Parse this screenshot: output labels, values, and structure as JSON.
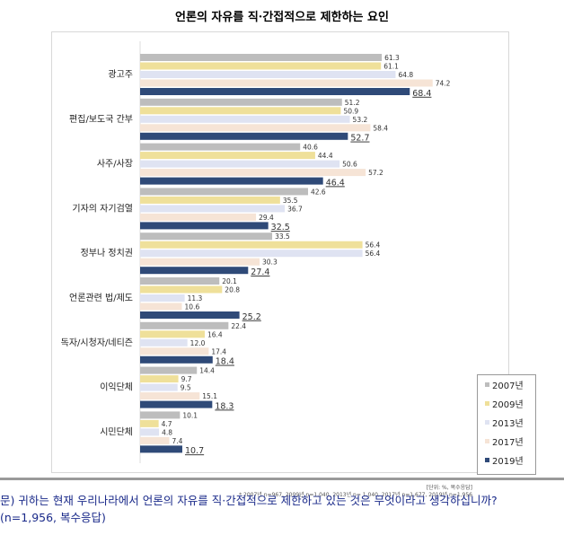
{
  "chart_data": {
    "type": "bar",
    "orientation": "horizontal",
    "title": "언론의 자유를 직·간접적으로 제한하는 요인",
    "categories": [
      "광고주",
      "편집/보도국 간부",
      "사주/사장",
      "기자의 자기검열",
      "정부나 정치권",
      "언론관련 법/제도",
      "독자/시청자/네티즌",
      "이익단체",
      "시민단체"
    ],
    "series": [
      {
        "name": "2007년",
        "color": "#bdbdbd",
        "values": [
          61.3,
          51.2,
          40.6,
          42.6,
          33.5,
          20.1,
          22.4,
          14.4,
          10.1
        ]
      },
      {
        "name": "2009년",
        "color": "#efe09a",
        "values": [
          61.1,
          50.9,
          44.4,
          35.5,
          56.4,
          20.8,
          16.4,
          9.7,
          4.7
        ]
      },
      {
        "name": "2013년",
        "color": "#dfe3f2",
        "values": [
          64.8,
          53.2,
          50.6,
          36.7,
          56.4,
          11.3,
          12.0,
          9.5,
          4.8
        ]
      },
      {
        "name": "2017년",
        "color": "#f6e4d6",
        "values": [
          74.2,
          58.4,
          57.2,
          29.4,
          30.3,
          10.6,
          17.4,
          15.1,
          7.4
        ]
      },
      {
        "name": "2019년",
        "color": "#2f4a78",
        "values": [
          68.4,
          52.7,
          46.4,
          32.5,
          27.4,
          25.2,
          18.4,
          18.3,
          10.7
        ]
      }
    ],
    "xlim": [
      0,
      80
    ],
    "legend": "bottom-right",
    "unit": "[단위: %, 복수응답]",
    "note": "* 2007년 n=967, 2009년 n=1,040, 2013년 n= 1,040, 2017년 n=1,677, 2019년 n=1,956"
  },
  "question": "문) 귀하는 현재 우리나라에서 언론의 자유를 직·간접적으로 제한하고 있는 것은 무엇이라고 생각하십니까? (n=1,956, 복수응답)"
}
